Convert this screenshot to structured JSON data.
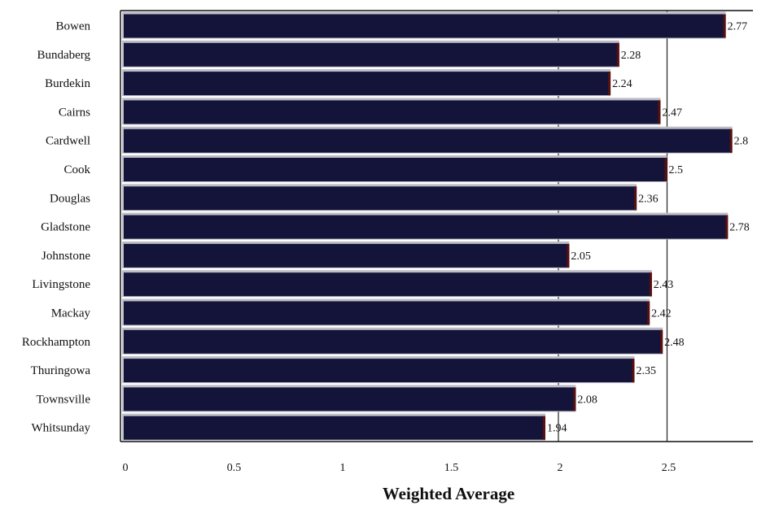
{
  "chart_data": {
    "type": "bar",
    "orientation": "horizontal",
    "categories": [
      "Bowen",
      "Bundaberg",
      "Burdekin",
      "Cairns",
      "Cardwell",
      "Cook",
      "Douglas",
      "Gladstone",
      "Johnstone",
      "Livingstone",
      "Mackay",
      "Rockhampton",
      "Thuringowa",
      "Townsville",
      "Whitsunday"
    ],
    "values": [
      2.77,
      2.28,
      2.24,
      2.47,
      2.8,
      2.5,
      2.36,
      2.78,
      2.05,
      2.43,
      2.42,
      2.48,
      2.35,
      2.08,
      1.94
    ],
    "value_labels": [
      "2.77",
      "2.28",
      "2.24",
      "2.47",
      "2.8",
      "2.5",
      "2.36",
      "2.78",
      "2.05",
      "2.43",
      "2.42",
      "2.48",
      "2.35",
      "2.08",
      "1.94"
    ],
    "x_ticks": [
      "0",
      "0.5",
      "1",
      "1.5",
      "2",
      "2.5"
    ],
    "xlabel": "Weighted Average",
    "xlim": [
      0,
      2.9
    ],
    "grid": "vertical gridlines at 2 and 2.5",
    "bar_color": "#14143a",
    "bar_highlight_color": "#bcbcc6",
    "bar_edge_color": "#5a0f0f"
  }
}
